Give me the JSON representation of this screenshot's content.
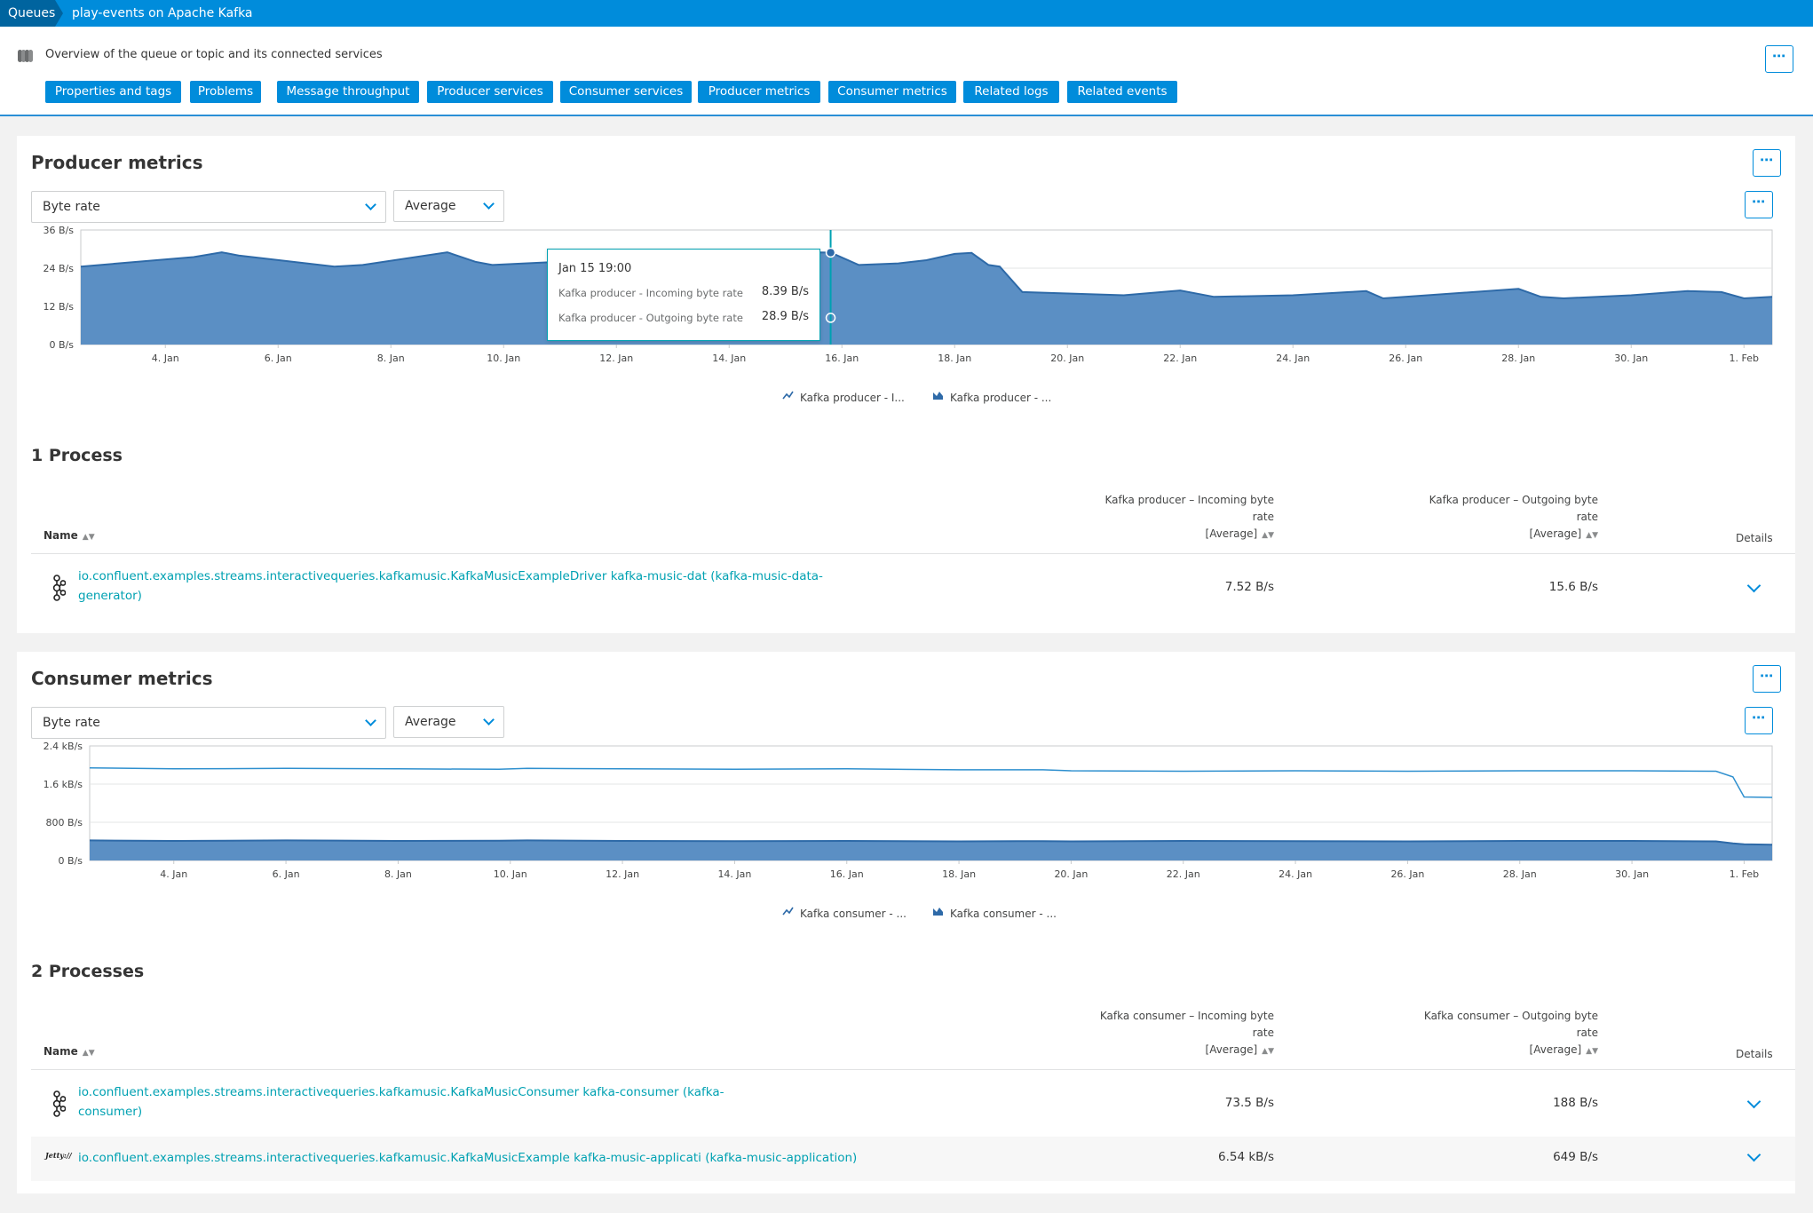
{
  "breadcrumb": {
    "root": "Queues",
    "current": "play-events on Apache Kafka"
  },
  "header": {
    "overview": "Overview of the queue or topic and its connected services",
    "nav": [
      "Properties and tags",
      "Problems",
      "Message throughput",
      "Producer services",
      "Consumer services",
      "Producer metrics",
      "Consumer metrics",
      "Related logs",
      "Related events"
    ],
    "more": "⋯"
  },
  "producer": {
    "title": "Producer metrics",
    "metric_select": "Byte rate",
    "agg_select": "Average",
    "legend": [
      "Kafka producer - I...",
      "Kafka producer - ..."
    ],
    "tooltip": {
      "title": "Jan 15 19:00",
      "rows": [
        {
          "label": "Kafka producer - Incoming byte rate",
          "value": "8.39 B/s"
        },
        {
          "label": "Kafka producer - Outgoing byte rate",
          "value": "28.9 B/s"
        }
      ]
    },
    "processes": {
      "title": "1 Process",
      "col_name": "Name",
      "col_in": [
        "Kafka producer – Incoming byte",
        "rate",
        "[Average]"
      ],
      "col_out": [
        "Kafka producer – Outgoing byte",
        "rate",
        "[Average]"
      ],
      "col_details": "Details",
      "rows": [
        {
          "icon": "kafka-icon",
          "name_line1": "io.confluent.examples.streams.interactivequeries.kafkamusic.KafkaMusicExampleDriver kafka-music-dat (kafka-music-data-",
          "name_line2": "generator)",
          "incoming": "7.52 B/s",
          "outgoing": "15.6 B/s"
        }
      ]
    }
  },
  "consumer": {
    "title": "Consumer metrics",
    "metric_select": "Byte rate",
    "agg_select": "Average",
    "legend": [
      "Kafka consumer - ...",
      "Kafka consumer - ..."
    ],
    "processes": {
      "title": "2 Processes",
      "col_name": "Name",
      "col_in": [
        "Kafka consumer – Incoming byte",
        "rate",
        "[Average]"
      ],
      "col_out": [
        "Kafka consumer – Outgoing byte",
        "rate",
        "[Average]"
      ],
      "col_details": "Details",
      "rows": [
        {
          "icon": "kafka-icon",
          "name_line1": "io.confluent.examples.streams.interactivequeries.kafkamusic.KafkaMusicConsumer kafka-consumer (kafka-",
          "name_line2": "consumer)",
          "incoming": "73.5 B/s",
          "outgoing": "188 B/s"
        },
        {
          "icon": "jetty-icon",
          "icon_text": "Jetty://",
          "name_line1": "io.confluent.examples.streams.interactivequeries.kafkamusic.KafkaMusicExample kafka-music-applicati (kafka-music-application)",
          "name_line2": "",
          "incoming": "6.54 kB/s",
          "outgoing": "649 B/s"
        }
      ]
    }
  },
  "colors": {
    "header_blue": "#008cdb",
    "breadcrumb_dark": "#00649f",
    "area_fill": "#5b8fc4",
    "area_line": "#2e6aa8",
    "link": "#00a1b2"
  },
  "chart_data": [
    {
      "type": "area",
      "title": "Producer metrics",
      "ylabel": "",
      "y_ticks": [
        "0 B/s",
        "12 B/s",
        "24 B/s",
        "36 B/s"
      ],
      "ylim": [
        0,
        36
      ],
      "x_ticks": [
        "4. Jan",
        "6. Jan",
        "8. Jan",
        "10. Jan",
        "12. Jan",
        "14. Jan",
        "16. Jan",
        "18. Jan",
        "20. Jan",
        "22. Jan",
        "24. Jan",
        "26. Jan",
        "28. Jan",
        "30. Jan",
        "1. Feb"
      ],
      "x": [
        2.5,
        4.5,
        5.0,
        5.3,
        7.0,
        7.5,
        9.0,
        9.5,
        9.8,
        11.0,
        12.0,
        12.5,
        13.0,
        14.0,
        15.0,
        15.8,
        16.3,
        17.0,
        17.5,
        18.0,
        18.3,
        18.6,
        18.8,
        19.2,
        21.0,
        22.0,
        22.3,
        22.6,
        24.0,
        25.0,
        25.3,
        25.6,
        28.0,
        28.4,
        28.8,
        30.0,
        31.0,
        31.6,
        32.0,
        32.5
      ],
      "series": [
        {
          "name": "Kafka producer - I...",
          "style": "line",
          "values": [
            8.4,
            8.4,
            8.4,
            8.4,
            8.4,
            8.4,
            8.4,
            8.4,
            8.4,
            8.4,
            8.4,
            8.4,
            8.4,
            8.4,
            8.4,
            8.39,
            8.4,
            8.4,
            8.4,
            8.4,
            8.4,
            8.4,
            8.4,
            8.4,
            8.4,
            8.4,
            8.4,
            8.4,
            8.4,
            8.4,
            8.4,
            8.4,
            8.4,
            8.4,
            8.4,
            8.4,
            8.4,
            8.4,
            8.4,
            8.4
          ]
        },
        {
          "name": "Kafka producer - ...",
          "style": "area",
          "values": [
            24.5,
            27.5,
            29.0,
            28.0,
            24.5,
            25.0,
            29.0,
            26.0,
            25.0,
            26.0,
            27.5,
            28.5,
            29.2,
            28.8,
            29.0,
            28.9,
            25.0,
            25.5,
            26.5,
            28.5,
            28.8,
            25.0,
            24.5,
            16.5,
            15.5,
            17.0,
            16.0,
            15.0,
            15.5,
            16.5,
            16.8,
            14.5,
            17.5,
            15.0,
            14.5,
            15.5,
            16.8,
            16.5,
            14.5,
            15.0
          ]
        }
      ]
    },
    {
      "type": "area",
      "title": "Consumer metrics",
      "ylabel": "",
      "y_ticks": [
        "0 B/s",
        "800 B/s",
        "1.6 kB/s",
        "2.4 kB/s"
      ],
      "ylim": [
        0,
        2400
      ],
      "x_ticks": [
        "4. Jan",
        "6. Jan",
        "8. Jan",
        "10. Jan",
        "12. Jan",
        "14. Jan",
        "16. Jan",
        "18. Jan",
        "20. Jan",
        "22. Jan",
        "24. Jan",
        "26. Jan",
        "28. Jan",
        "30. Jan",
        "1. Feb"
      ],
      "x": [
        2.5,
        4.0,
        6.0,
        8.0,
        9.8,
        10.3,
        12.0,
        14.0,
        16.0,
        18.0,
        19.5,
        20.0,
        22.0,
        24.0,
        26.0,
        28.0,
        30.0,
        31.5,
        31.8,
        32.0,
        32.5
      ],
      "series": [
        {
          "name": "Kafka consumer - ...",
          "style": "line",
          "values": [
            1940,
            1920,
            1930,
            1920,
            1910,
            1930,
            1920,
            1910,
            1920,
            1900,
            1900,
            1880,
            1870,
            1880,
            1870,
            1880,
            1880,
            1870,
            1750,
            1330,
            1320
          ]
        },
        {
          "name": "Kafka consumer - ...",
          "style": "area",
          "values": [
            420,
            410,
            420,
            410,
            415,
            420,
            410,
            405,
            410,
            400,
            405,
            400,
            410,
            405,
            400,
            410,
            410,
            400,
            360,
            340,
            330
          ]
        }
      ]
    }
  ]
}
